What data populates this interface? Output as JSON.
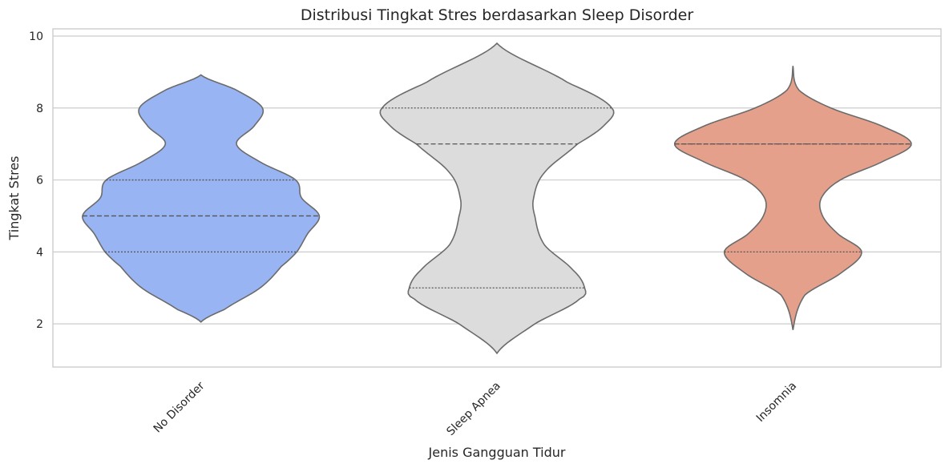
{
  "chart_data": {
    "type": "violin",
    "title": "Distribusi Tingkat Stres berdasarkan Sleep Disorder",
    "xlabel": "Jenis Gangguan Tidur",
    "ylabel": "Tingkat Stres",
    "categories": [
      "No Disorder",
      "Sleep Apnea",
      "Insomnia"
    ],
    "ylim": [
      0.8,
      10.2
    ],
    "yticks": [
      2,
      4,
      6,
      8,
      10
    ],
    "grid": true,
    "series": [
      {
        "category": "No Disorder",
        "color": "#98b4f3",
        "range": [
          2.05,
          8.92
        ],
        "quartiles": [
          4,
          5,
          6
        ],
        "density_profile": [
          [
            2.05,
            0.0
          ],
          [
            2.4,
            0.2
          ],
          [
            3.0,
            0.5
          ],
          [
            3.6,
            0.68
          ],
          [
            4.0,
            0.81
          ],
          [
            4.5,
            0.9
          ],
          [
            5.0,
            1.0
          ],
          [
            5.5,
            0.85
          ],
          [
            6.0,
            0.8
          ],
          [
            6.5,
            0.5
          ],
          [
            7.0,
            0.3
          ],
          [
            7.5,
            0.45
          ],
          [
            8.0,
            0.52
          ],
          [
            8.5,
            0.3
          ],
          [
            8.92,
            0.0
          ]
        ]
      },
      {
        "category": "Sleep Apnea",
        "color": "#dcdcdc",
        "range": [
          1.18,
          9.8
        ],
        "quartiles": [
          3,
          7,
          8
        ],
        "density_profile": [
          [
            1.18,
            0.0
          ],
          [
            2.0,
            0.32
          ],
          [
            2.7,
            0.7
          ],
          [
            3.0,
            0.74
          ],
          [
            3.5,
            0.64
          ],
          [
            4.2,
            0.4
          ],
          [
            5.0,
            0.32
          ],
          [
            5.5,
            0.31
          ],
          [
            6.2,
            0.4
          ],
          [
            7.0,
            0.68
          ],
          [
            7.5,
            0.9
          ],
          [
            8.0,
            0.97
          ],
          [
            8.7,
            0.6
          ],
          [
            9.8,
            0.0
          ]
        ]
      },
      {
        "category": "Insomnia",
        "color": "#e4a08b",
        "range": [
          1.83,
          9.17
        ],
        "quartiles": [
          4,
          7,
          7
        ],
        "density_profile": [
          [
            1.83,
            0.0
          ],
          [
            2.8,
            0.1
          ],
          [
            3.4,
            0.4
          ],
          [
            4.0,
            0.58
          ],
          [
            4.5,
            0.38
          ],
          [
            5.0,
            0.25
          ],
          [
            5.5,
            0.24
          ],
          [
            6.0,
            0.4
          ],
          [
            6.5,
            0.75
          ],
          [
            7.0,
            1.0
          ],
          [
            7.5,
            0.75
          ],
          [
            8.0,
            0.32
          ],
          [
            8.5,
            0.05
          ],
          [
            9.17,
            0.0
          ]
        ]
      }
    ]
  }
}
